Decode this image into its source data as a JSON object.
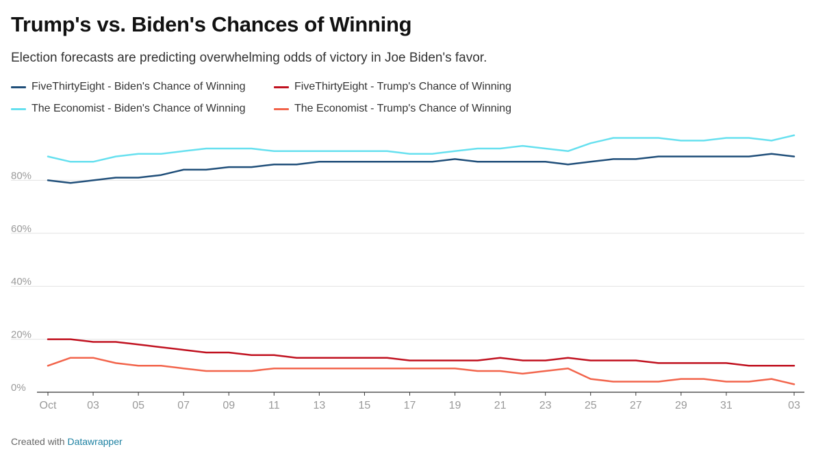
{
  "header": {
    "title": "Trump's vs. Biden's Chances of Winning",
    "subtitle": "Election forecasts are predicting overwhelming odds of victory in Joe Biden's favor."
  },
  "footer": {
    "created_with": "Created with",
    "link_text": "Datawrapper"
  },
  "colors": {
    "fte_biden": "#1f4e79",
    "fte_trump": "#c0111f",
    "econ_biden": "#66e0ef",
    "econ_trump": "#f2644b",
    "grid": "#e2e2e2",
    "axis": "#333333",
    "tick_text": "#999999"
  },
  "chart_data": {
    "type": "line",
    "title": "Trump's vs. Biden's Chances of Winning",
    "subtitle": "Election forecasts are predicting overwhelming odds of victory in Joe Biden's favor.",
    "xlabel": "",
    "ylabel": "",
    "ylim": [
      0,
      100
    ],
    "y_ticks": [
      0,
      20,
      40,
      60,
      80
    ],
    "y_tick_labels": [
      "0%",
      "20%",
      "40%",
      "60%",
      "80%"
    ],
    "grid": true,
    "legend_position": "top-left",
    "x": [
      "Oct 1",
      "Oct 2",
      "Oct 3",
      "Oct 4",
      "Oct 5",
      "Oct 6",
      "Oct 7",
      "Oct 8",
      "Oct 9",
      "Oct 10",
      "Oct 11",
      "Oct 12",
      "Oct 13",
      "Oct 14",
      "Oct 15",
      "Oct 16",
      "Oct 17",
      "Oct 18",
      "Oct 19",
      "Oct 20",
      "Oct 21",
      "Oct 22",
      "Oct 23",
      "Oct 24",
      "Oct 25",
      "Oct 26",
      "Oct 27",
      "Oct 28",
      "Oct 29",
      "Oct 30",
      "Oct 31",
      "Nov 1",
      "Nov 2",
      "Nov 3"
    ],
    "x_tick_labels": [
      "Oct",
      "03",
      "05",
      "07",
      "09",
      "11",
      "13",
      "15",
      "17",
      "19",
      "21",
      "23",
      "25",
      "27",
      "29",
      "31",
      "03"
    ],
    "x_tick_positions": [
      "Oct 1",
      "Oct 3",
      "Oct 5",
      "Oct 7",
      "Oct 9",
      "Oct 11",
      "Oct 13",
      "Oct 15",
      "Oct 17",
      "Oct 19",
      "Oct 21",
      "Oct 23",
      "Oct 25",
      "Oct 27",
      "Oct 29",
      "Oct 31",
      "Nov 3"
    ],
    "series": [
      {
        "name": "FiveThirtyEight - Biden's Chance of Winning",
        "color": "#1f4e79",
        "values": [
          80,
          79,
          80,
          81,
          81,
          82,
          84,
          84,
          85,
          85,
          86,
          86,
          87,
          87,
          87,
          87,
          87,
          87,
          88,
          87,
          87,
          87,
          87,
          86,
          87,
          88,
          88,
          89,
          89,
          89,
          89,
          89,
          90,
          89
        ]
      },
      {
        "name": "FiveThirtyEight - Trump's Chance of Winning",
        "color": "#c0111f",
        "values": [
          20,
          20,
          19,
          19,
          18,
          17,
          16,
          15,
          15,
          14,
          14,
          13,
          13,
          13,
          13,
          13,
          12,
          12,
          12,
          12,
          13,
          12,
          12,
          13,
          12,
          12,
          12,
          11,
          11,
          11,
          11,
          10,
          10,
          10
        ]
      },
      {
        "name": "The Economist - Biden's Chance of Winning",
        "color": "#66e0ef",
        "values": [
          89,
          87,
          87,
          89,
          90,
          90,
          91,
          92,
          92,
          92,
          91,
          91,
          91,
          91,
          91,
          91,
          90,
          90,
          91,
          92,
          92,
          93,
          92,
          91,
          94,
          96,
          96,
          96,
          95,
          95,
          96,
          96,
          95,
          97
        ]
      },
      {
        "name": "The Economist - Trump's Chance of Winning",
        "color": "#f2644b",
        "values": [
          10,
          13,
          13,
          11,
          10,
          10,
          9,
          8,
          8,
          8,
          9,
          9,
          9,
          9,
          9,
          9,
          9,
          9,
          9,
          8,
          8,
          7,
          8,
          9,
          5,
          4,
          4,
          4,
          5,
          5,
          4,
          4,
          5,
          3
        ]
      }
    ]
  }
}
